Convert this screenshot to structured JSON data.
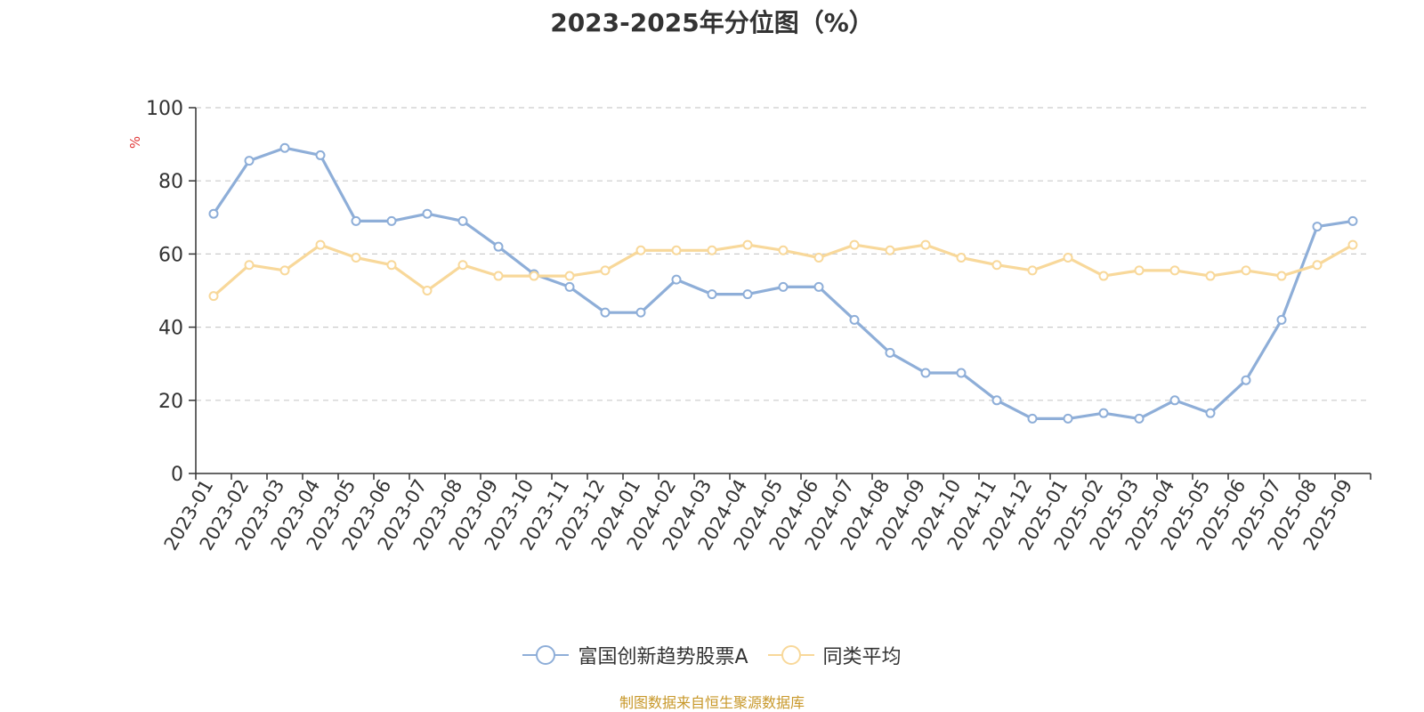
{
  "chart_data": {
    "type": "line",
    "title": "2023-2025年分位图（%）",
    "ylabel": "%",
    "ylim": [
      0,
      100
    ],
    "yticks": [
      0,
      20,
      40,
      60,
      80,
      100
    ],
    "grid": true,
    "legend_placement": "bottom",
    "categories": [
      "2023-01",
      "2023-02",
      "2023-03",
      "2023-04",
      "2023-05",
      "2023-06",
      "2023-07",
      "2023-08",
      "2023-09",
      "2023-10",
      "2023-11",
      "2023-12",
      "2024-01",
      "2024-02",
      "2024-03",
      "2024-04",
      "2024-05",
      "2024-06",
      "2024-07",
      "2024-08",
      "2024-09",
      "2024-10",
      "2024-11",
      "2024-12",
      "2025-01",
      "2025-02",
      "2025-03",
      "2025-04",
      "2025-05",
      "2025-06",
      "2025-07",
      "2025-08",
      "2025-09"
    ],
    "series": [
      {
        "name": "富国创新趋势股票A",
        "color": "#8eaed8",
        "values": [
          71,
          85.5,
          89,
          87,
          69,
          69,
          71,
          69,
          62,
          54.5,
          51,
          44,
          44,
          53,
          49,
          49,
          51,
          51,
          42,
          33,
          27.5,
          27.5,
          20,
          15,
          15,
          16.5,
          15,
          20,
          16.5,
          25.5,
          42,
          67.5,
          69
        ]
      },
      {
        "name": "同类平均",
        "color": "#f8d89a",
        "values": [
          48.5,
          57,
          55.5,
          62.5,
          59,
          57,
          50,
          57,
          54,
          54,
          54,
          55.5,
          61,
          61,
          61,
          62.5,
          61,
          59,
          62.5,
          61,
          62.5,
          59,
          57,
          55.5,
          59,
          54,
          55.5,
          55.5,
          54,
          55.5,
          54,
          57,
          62.5
        ]
      }
    ]
  },
  "source_note": "制图数据来自恒生聚源数据库"
}
